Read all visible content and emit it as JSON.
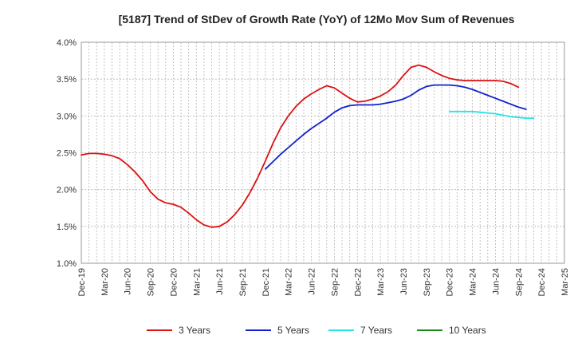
{
  "chart_data": {
    "type": "line",
    "title": "[5187]  Trend of StDev of Growth Rate (YoY) of 12Mo Mov Sum of Revenues",
    "xlabel": "",
    "ylabel": "",
    "ylim": [
      1.0,
      4.0
    ],
    "y_ticks": [
      "1.0%",
      "1.5%",
      "2.0%",
      "2.5%",
      "3.0%",
      "3.5%",
      "4.0%"
    ],
    "y_tick_values": [
      1.0,
      1.5,
      2.0,
      2.5,
      3.0,
      3.5,
      4.0
    ],
    "x_ticks": [
      "Dec-19",
      "Mar-20",
      "Jun-20",
      "Sep-20",
      "Dec-20",
      "Mar-21",
      "Jun-21",
      "Sep-21",
      "Dec-21",
      "Mar-22",
      "Jun-22",
      "Sep-22",
      "Dec-22",
      "Mar-23",
      "Jun-23",
      "Sep-23",
      "Dec-23",
      "Mar-24",
      "Jun-24",
      "Sep-24",
      "Dec-24",
      "Mar-25"
    ],
    "x_range_months": [
      0,
      63
    ],
    "grid": true,
    "legend_position": "bottom",
    "series": [
      {
        "name": "3 Years",
        "color": "#dd1111",
        "start_month": 0,
        "values": [
          2.47,
          2.49,
          2.49,
          2.48,
          2.46,
          2.42,
          2.34,
          2.24,
          2.12,
          1.97,
          1.87,
          1.82,
          1.8,
          1.76,
          1.68,
          1.59,
          1.52,
          1.49,
          1.5,
          1.56,
          1.66,
          1.79,
          1.96,
          2.16,
          2.39,
          2.63,
          2.84,
          3.0,
          3.13,
          3.23,
          3.3,
          3.36,
          3.41,
          3.38,
          3.31,
          3.24,
          3.19,
          3.2,
          3.23,
          3.27,
          3.33,
          3.42,
          3.55,
          3.66,
          3.69,
          3.66,
          3.6,
          3.55,
          3.51,
          3.49,
          3.48,
          3.48,
          3.48,
          3.48,
          3.48,
          3.47,
          3.44,
          3.39
        ]
      },
      {
        "name": "5 Years",
        "color": "#1122cc",
        "start_month": 24,
        "values": [
          2.28,
          2.38,
          2.48,
          2.57,
          2.66,
          2.75,
          2.83,
          2.9,
          2.97,
          3.05,
          3.11,
          3.14,
          3.15,
          3.15,
          3.15,
          3.16,
          3.18,
          3.2,
          3.23,
          3.28,
          3.35,
          3.4,
          3.42,
          3.42,
          3.42,
          3.41,
          3.39,
          3.36,
          3.32,
          3.28,
          3.24,
          3.2,
          3.16,
          3.12,
          3.09
        ]
      },
      {
        "name": "7 Years",
        "color": "#22e5e5",
        "start_month": 48,
        "values": [
          3.06,
          3.06,
          3.06,
          3.06,
          3.05,
          3.04,
          3.03,
          3.01,
          2.99,
          2.98,
          2.97,
          2.97
        ]
      },
      {
        "name": "10 Years",
        "color": "#1a8a1a",
        "start_month": null,
        "values": []
      }
    ]
  }
}
